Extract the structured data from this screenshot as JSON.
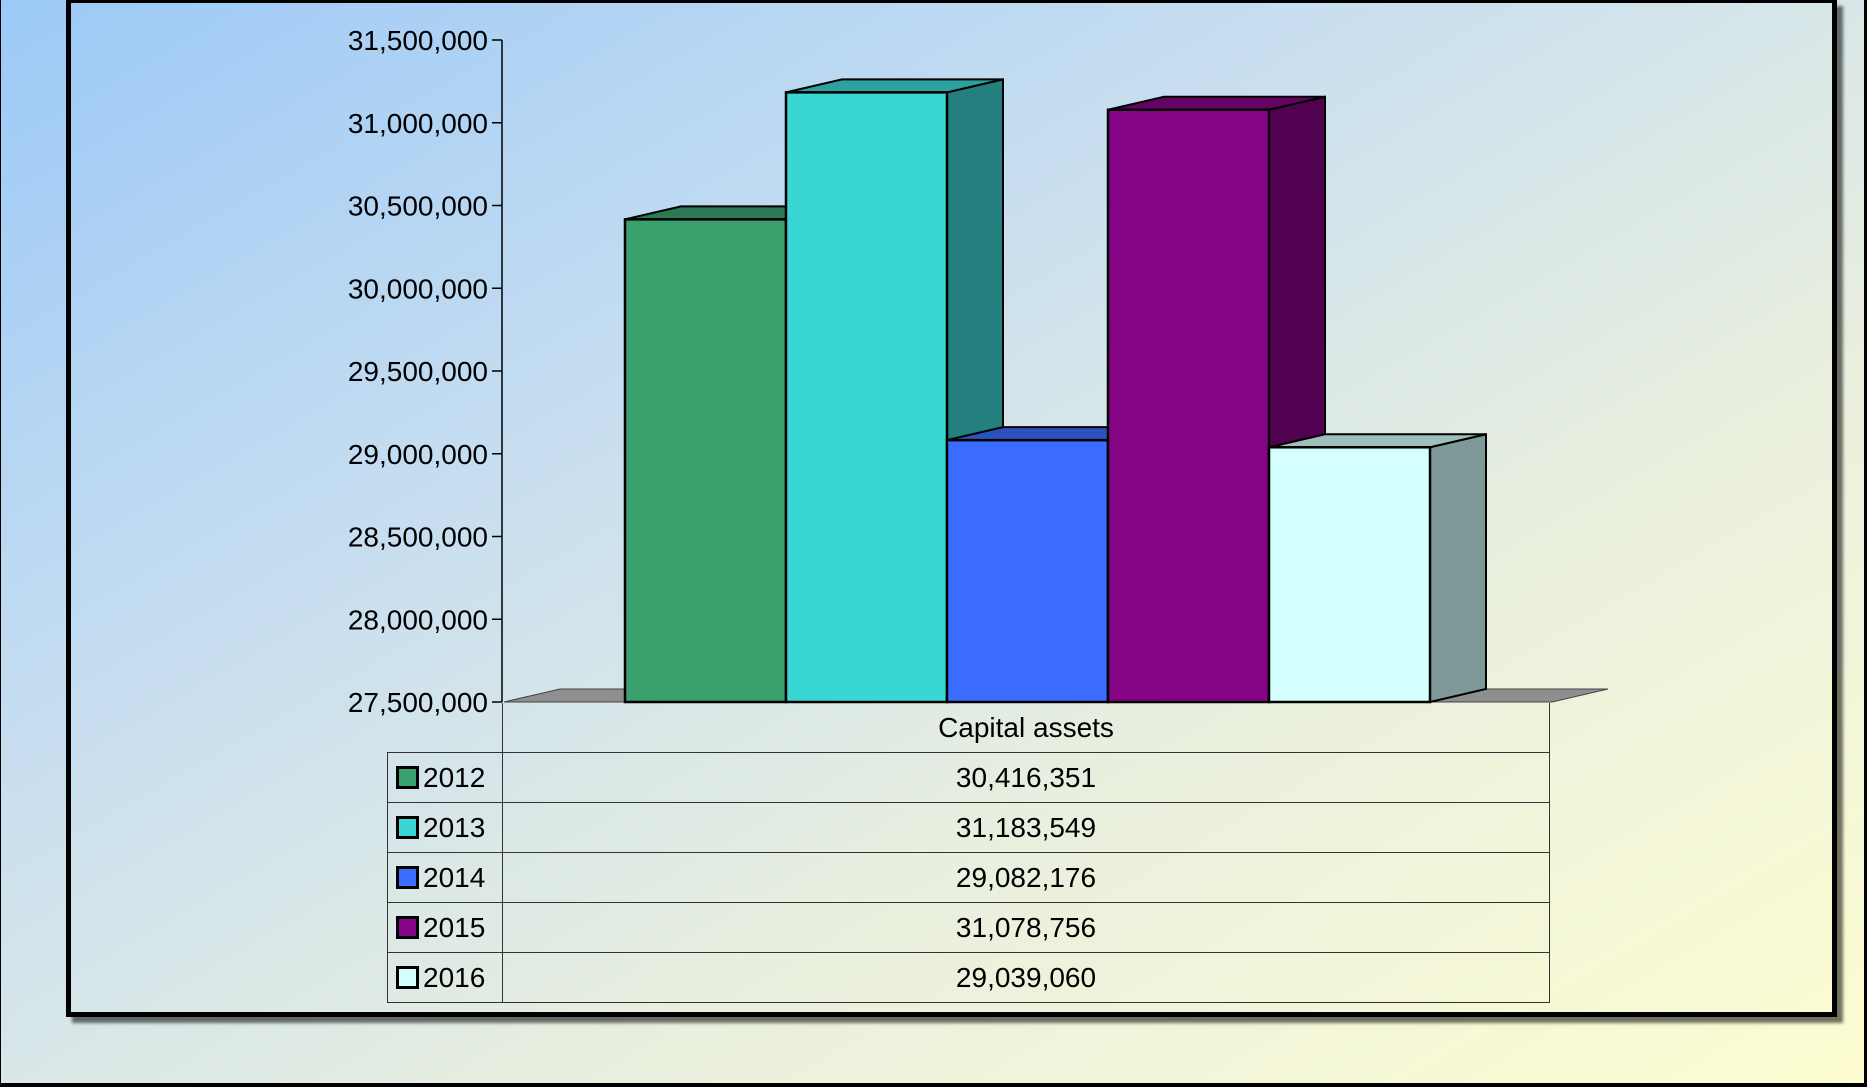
{
  "chart_data": {
    "type": "bar",
    "categories": [
      "Capital assets"
    ],
    "series": [
      {
        "name": "2012",
        "values": [
          30416351
        ],
        "color": "#3aa06e"
      },
      {
        "name": "2013",
        "values": [
          31183549
        ],
        "color": "#3ad6d4"
      },
      {
        "name": "2014",
        "values": [
          29082176
        ],
        "color": "#3a6dff"
      },
      {
        "name": "2015",
        "values": [
          31078756
        ],
        "color": "#850485"
      },
      {
        "name": "2016",
        "values": [
          29039060
        ],
        "color": "#d4ffff"
      }
    ],
    "ylim": [
      27500000,
      31500000
    ],
    "yticks": [
      "27,500,000",
      "28,000,000",
      "28,500,000",
      "29,000,000",
      "29,500,000",
      "30,000,000",
      "30,500,000",
      "31,000,000",
      "31,500,000"
    ],
    "table": {
      "header": "Capital assets",
      "rows": [
        {
          "label": "2012",
          "value": "30,416,351"
        },
        {
          "label": "2013",
          "value": "31,183,549"
        },
        {
          "label": "2014",
          "value": "29,082,176"
        },
        {
          "label": "2015",
          "value": "31,078,756"
        },
        {
          "label": "2016",
          "value": "29,039,060"
        }
      ]
    },
    "style": "3d-column",
    "grid": false,
    "legend": "data-table"
  }
}
